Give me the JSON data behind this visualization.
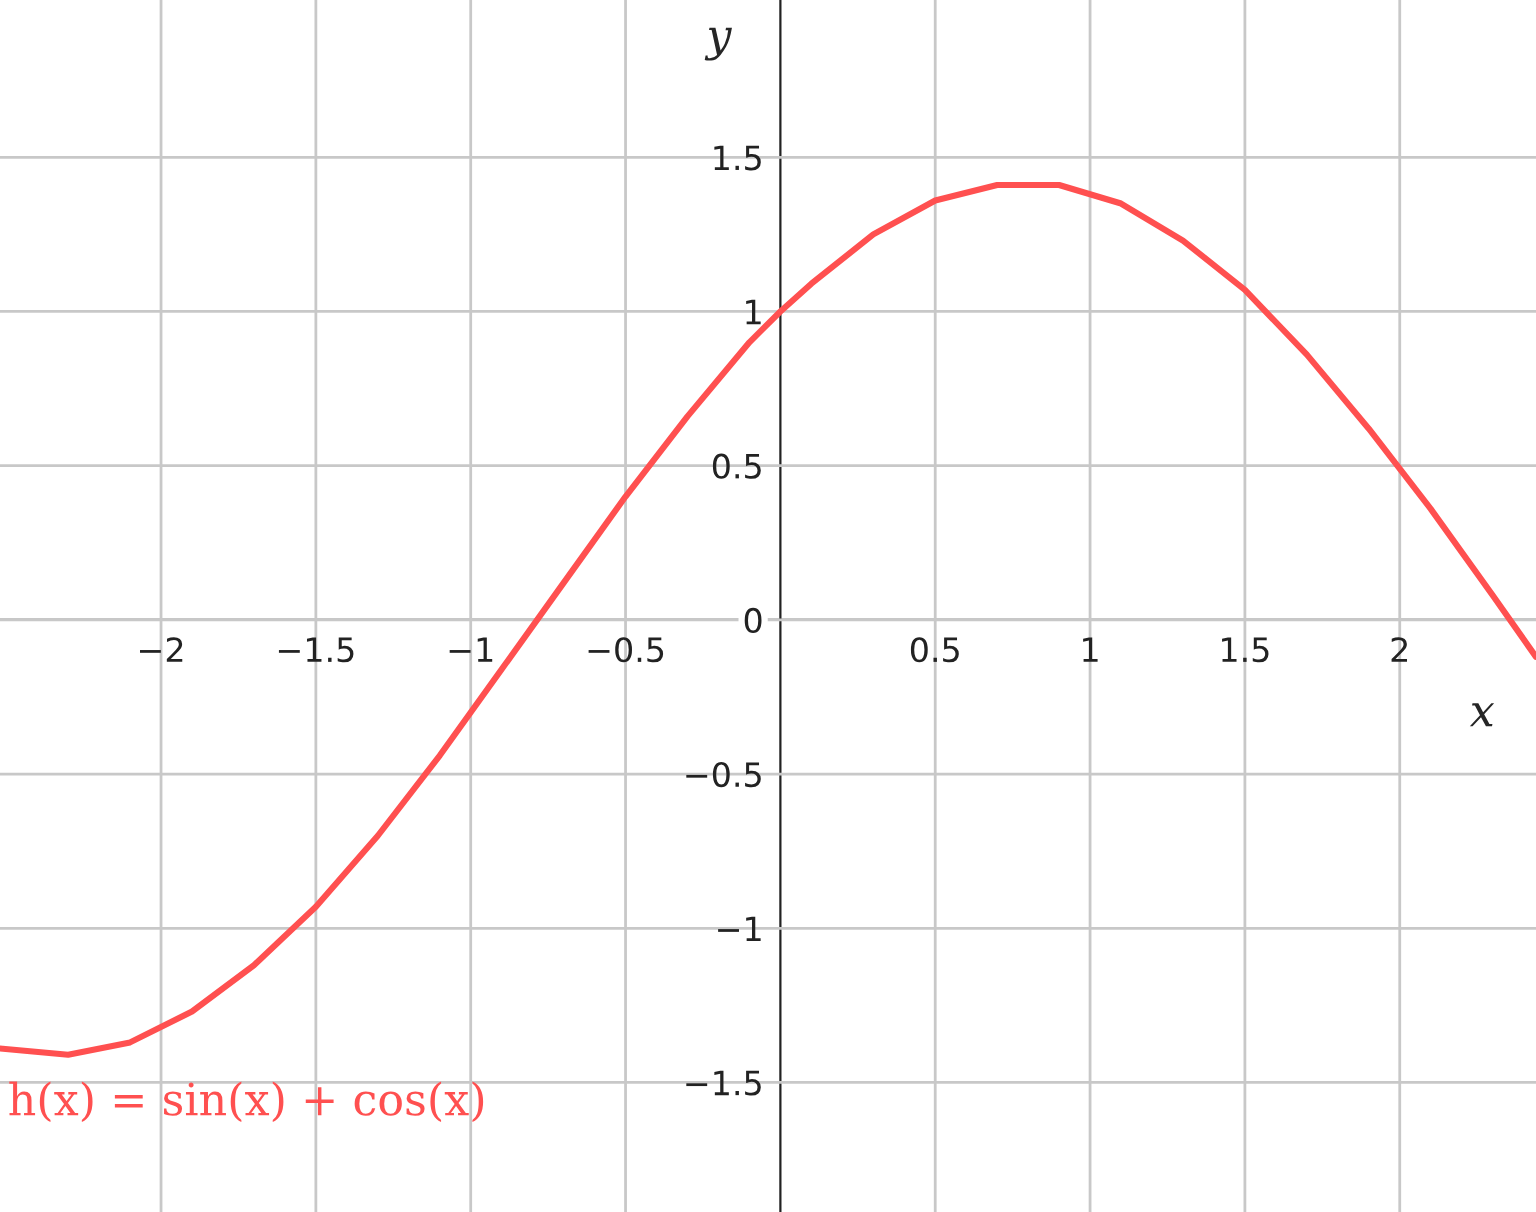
{
  "chart_data": {
    "type": "line",
    "x": [
      -2.52,
      -2.3,
      -2.1,
      -1.9,
      -1.7,
      -1.5,
      -1.3,
      -1.1,
      -0.9,
      -0.7,
      -0.5,
      -0.3,
      -0.1,
      0,
      0.1,
      0.3,
      0.5,
      0.7,
      0.79,
      0.9,
      1.1,
      1.3,
      1.5,
      1.7,
      1.9,
      2.1,
      2.3,
      2.44
    ],
    "series": [
      {
        "color": "#ff5050",
        "values": [
          -1.39,
          -1.41,
          -1.37,
          -1.27,
          -1.12,
          -0.93,
          -0.7,
          -0.44,
          -0.16,
          0.12,
          0.4,
          0.66,
          0.9,
          1.0,
          1.09,
          1.25,
          1.36,
          1.41,
          1.41,
          1.41,
          1.35,
          1.23,
          1.07,
          0.86,
          0.62,
          0.36,
          0.08,
          -0.12
        ]
      }
    ],
    "xlabel": "x",
    "ylabel": "y",
    "annotations": [
      "h(x) = sin(x) + cos(x)"
    ],
    "xlim": [
      -2.52,
      2.44
    ],
    "ylim": [
      -1.92,
      2.01
    ],
    "xticks": [
      {
        "value": -2,
        "label": "−2"
      },
      {
        "value": -1.5,
        "label": "−1.5"
      },
      {
        "value": -1,
        "label": "−1"
      },
      {
        "value": -0.5,
        "label": "−0.5"
      },
      0.5,
      1,
      1.5,
      2
    ],
    "yticks": [
      {
        "value": -1.5,
        "label": "−1.5"
      },
      {
        "value": -1,
        "label": "−1"
      },
      {
        "value": -0.5,
        "label": "−0.5"
      },
      0,
      0.5,
      1,
      1.5
    ],
    "grid": true
  }
}
